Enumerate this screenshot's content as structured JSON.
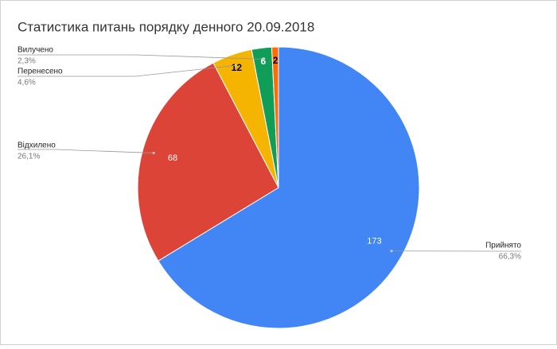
{
  "chart_data": {
    "type": "pie",
    "title": "Статистика питань порядку денного 20.09.2018",
    "categories": [
      "Прийнято",
      "Відхилено",
      "Перенесено",
      "Вилучено",
      null
    ],
    "values": [
      173,
      68,
      12,
      6,
      2
    ],
    "percent_labels": [
      "66,3%",
      "26,1%",
      "4,6%",
      "2,3%",
      null
    ],
    "colors": [
      "#4285f4",
      "#db4437",
      "#f4b400",
      "#0f9d58",
      "#ff6d01"
    ]
  }
}
